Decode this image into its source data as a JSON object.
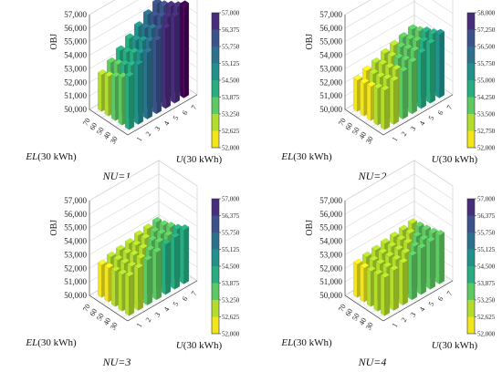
{
  "chart_data": [
    {
      "type": "bar3d",
      "panel_label": "NU=1",
      "xlabel_prefix": "EL",
      "xlabel_suffix": "(30 kWh)",
      "ylabel_prefix": "U",
      "ylabel_suffix": "(30 kWh)",
      "zlabel": "OBJ",
      "zlim": [
        50000,
        57000
      ],
      "z_ticks": [
        "50,000",
        "51,000",
        "52,000",
        "53,000",
        "54,000",
        "55,000",
        "56,000",
        "57,000"
      ],
      "el_ticks": [
        "30",
        "40",
        "50",
        "60",
        "70"
      ],
      "u_ticks": [
        "1",
        "2",
        "3",
        "4",
        "5",
        "6",
        "7"
      ],
      "colorbar_ticks": [
        "52,000",
        "52,625",
        "53,250",
        "53,875",
        "54,500",
        "55,125",
        "55,750",
        "56,375",
        "57,000"
      ],
      "colorbar_range": [
        52000,
        57000
      ],
      "grid": true,
      "el_values": [
        30,
        40,
        50,
        60,
        70
      ],
      "u_values": [
        1,
        2,
        3,
        4,
        5,
        6,
        7
      ],
      "values": [
        [
          53900,
          54400,
          54900,
          55400,
          55900,
          56400,
          56800
        ],
        [
          53500,
          54000,
          54500,
          55000,
          55500,
          56000,
          56400
        ],
        [
          53200,
          53700,
          54200,
          54700,
          55200,
          55700,
          56100
        ],
        [
          52900,
          53400,
          53900,
          54400,
          54900,
          55400,
          55800
        ],
        [
          52700,
          53200,
          53700,
          54200,
          54700,
          55200,
          55600
        ]
      ]
    },
    {
      "type": "bar3d",
      "panel_label": "NU=2",
      "xlabel_prefix": "EL",
      "xlabel_suffix": "(30 kWh)",
      "ylabel_prefix": "U",
      "ylabel_suffix": "(30 kWh)",
      "zlabel": "OBJ",
      "zlim": [
        50000,
        57000
      ],
      "z_ticks": [
        "50,000",
        "51,000",
        "52,000",
        "53,000",
        "54,000",
        "55,000",
        "56,000",
        "57,000"
      ],
      "el_ticks": [
        "30",
        "40",
        "50",
        "60",
        "70"
      ],
      "u_ticks": [
        "1",
        "2",
        "3",
        "4",
        "5",
        "6",
        "7"
      ],
      "colorbar_ticks": [
        "52,000",
        "52,750",
        "53,500",
        "54,250",
        "55,000",
        "55,750",
        "56,500",
        "57,250",
        "58,000"
      ],
      "colorbar_range": [
        52000,
        58000
      ],
      "grid": true,
      "el_values": [
        30,
        40,
        50,
        60,
        70
      ],
      "u_values": [
        1,
        2,
        3,
        4,
        5,
        6,
        7
      ],
      "values": [
        [
          52900,
          53200,
          53500,
          53800,
          54100,
          54400,
          54700
        ],
        [
          52700,
          53000,
          53300,
          53600,
          53900,
          54200,
          54400
        ],
        [
          52500,
          52800,
          53100,
          53400,
          53700,
          53900,
          54200
        ],
        [
          52400,
          52700,
          53000,
          53200,
          53500,
          53700,
          53900
        ],
        [
          52300,
          52600,
          52800,
          53100,
          53300,
          53500,
          53700
        ]
      ]
    },
    {
      "type": "bar3d",
      "panel_label": "NU=3",
      "xlabel_prefix": "EL",
      "xlabel_suffix": "(30 kWh)",
      "ylabel_prefix": "U",
      "ylabel_suffix": "(30 kWh)",
      "zlabel": "OBJ",
      "zlim": [
        50000,
        57000
      ],
      "z_ticks": [
        "50,000",
        "51,000",
        "52,000",
        "53,000",
        "54,000",
        "55,000",
        "56,000",
        "57,000"
      ],
      "el_ticks": [
        "30",
        "40",
        "50",
        "60",
        "70"
      ],
      "u_ticks": [
        "1",
        "2",
        "3",
        "4",
        "5",
        "6",
        "7"
      ],
      "colorbar_ticks": [
        "52,000",
        "52,625",
        "53,250",
        "53,875",
        "54,500",
        "55,125",
        "55,750",
        "56,375",
        "57,000"
      ],
      "colorbar_range": [
        52000,
        57000
      ],
      "grid": true,
      "el_values": [
        30,
        40,
        50,
        60,
        70
      ],
      "u_values": [
        1,
        2,
        3,
        4,
        5,
        6,
        7
      ],
      "values": [
        [
          52900,
          53100,
          53300,
          53500,
          53700,
          53800,
          54000
        ],
        [
          52700,
          52900,
          53100,
          53300,
          53500,
          53600,
          53700
        ],
        [
          52600,
          52800,
          53000,
          53100,
          53300,
          53400,
          53500
        ],
        [
          52500,
          52700,
          52800,
          53000,
          53100,
          53200,
          53300
        ],
        [
          52400,
          52600,
          52700,
          52800,
          53000,
          53100,
          53200
        ]
      ]
    },
    {
      "type": "bar3d",
      "panel_label": "NU=4",
      "xlabel_prefix": "EL",
      "xlabel_suffix": "(30 kWh)",
      "ylabel_prefix": "U",
      "ylabel_suffix": "(30 kWh)",
      "zlabel": "OBJ",
      "zlim": [
        50000,
        57000
      ],
      "z_ticks": [
        "50,000",
        "51,000",
        "52,000",
        "53,000",
        "54,000",
        "55,000",
        "56,000",
        "57,000"
      ],
      "el_ticks": [
        "30",
        "40",
        "50",
        "60",
        "70"
      ],
      "u_ticks": [
        "1",
        "2",
        "3",
        "4",
        "5",
        "6",
        "7"
      ],
      "colorbar_ticks": [
        "52,000",
        "52,625",
        "53,250",
        "53,875",
        "54,500",
        "55,125",
        "55,750",
        "56,375",
        "57,000"
      ],
      "colorbar_range": [
        52000,
        57000
      ],
      "grid": true,
      "el_values": [
        30,
        40,
        50,
        60,
        70
      ],
      "u_values": [
        1,
        2,
        3,
        4,
        5,
        6,
        7
      ],
      "values": [
        [
          52800,
          52950,
          53100,
          53250,
          53400,
          53500,
          53600
        ],
        [
          52700,
          52850,
          53000,
          53100,
          53200,
          53300,
          53400
        ],
        [
          52600,
          52750,
          52900,
          53000,
          53100,
          53200,
          53300
        ],
        [
          52500,
          52650,
          52800,
          52900,
          53000,
          53100,
          53200
        ],
        [
          52450,
          52600,
          52700,
          52800,
          52900,
          53000,
          53100
        ]
      ]
    }
  ],
  "colors": {
    "scale": [
      "#f2e51c",
      "#b2dd2d",
      "#5ec962",
      "#27ad81",
      "#21918c",
      "#2c728e",
      "#3b528b",
      "#472d7b",
      "#440154"
    ],
    "grid": "#c8c8c8",
    "axis": "#333333"
  }
}
